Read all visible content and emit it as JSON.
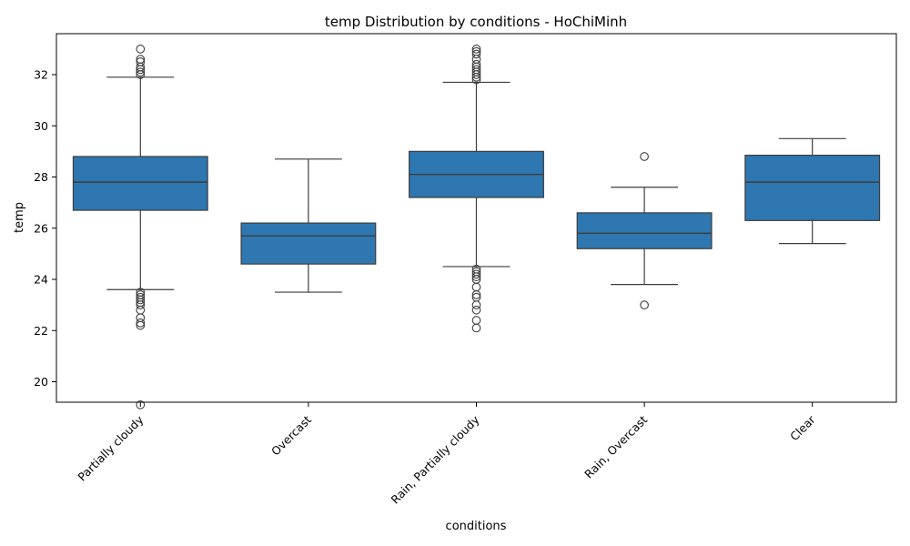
{
  "chart_data": {
    "type": "box",
    "title": "temp Distribution by conditions - HoChiMinh",
    "xlabel": "conditions",
    "ylabel": "temp",
    "ylim": [
      19.2,
      33.6
    ],
    "yticks": [
      20,
      22,
      24,
      26,
      28,
      30,
      32
    ],
    "color": "#2e77b0",
    "grid": false,
    "categories": [
      "Partially cloudy",
      "Overcast",
      "Rain, Partially cloudy",
      "Rain, Overcast",
      "Clear"
    ],
    "boxes": [
      {
        "category": "Partially cloudy",
        "whisker_low": 23.6,
        "q1": 26.7,
        "median": 27.8,
        "q3": 28.8,
        "whisker_high": 31.9,
        "outliers": [
          33.0,
          32.6,
          32.5,
          32.3,
          32.2,
          32.1,
          32.0,
          23.5,
          23.4,
          23.3,
          23.2,
          23.1,
          23.0,
          22.8,
          22.5,
          22.3,
          22.2,
          19.1
        ]
      },
      {
        "category": "Overcast",
        "whisker_low": 23.5,
        "q1": 24.6,
        "median": 25.7,
        "q3": 26.2,
        "whisker_high": 28.7,
        "outliers": []
      },
      {
        "category": "Rain, Partially cloudy",
        "whisker_low": 24.5,
        "q1": 27.2,
        "median": 28.1,
        "q3": 29.0,
        "whisker_high": 31.7,
        "outliers": [
          33.0,
          32.9,
          32.8,
          32.6,
          32.4,
          32.3,
          32.2,
          32.1,
          32.0,
          31.9,
          31.8,
          24.4,
          24.3,
          24.2,
          24.1,
          24.0,
          23.7,
          23.4,
          23.3,
          23.0,
          22.8,
          22.4,
          22.1
        ]
      },
      {
        "category": "Rain, Overcast",
        "whisker_low": 23.8,
        "q1": 25.2,
        "median": 25.8,
        "q3": 26.6,
        "whisker_high": 27.6,
        "outliers": [
          28.8,
          23.0
        ]
      },
      {
        "category": "Clear",
        "whisker_low": 25.4,
        "q1": 26.3,
        "median": 27.8,
        "q3": 28.85,
        "whisker_high": 29.5,
        "outliers": []
      }
    ]
  }
}
